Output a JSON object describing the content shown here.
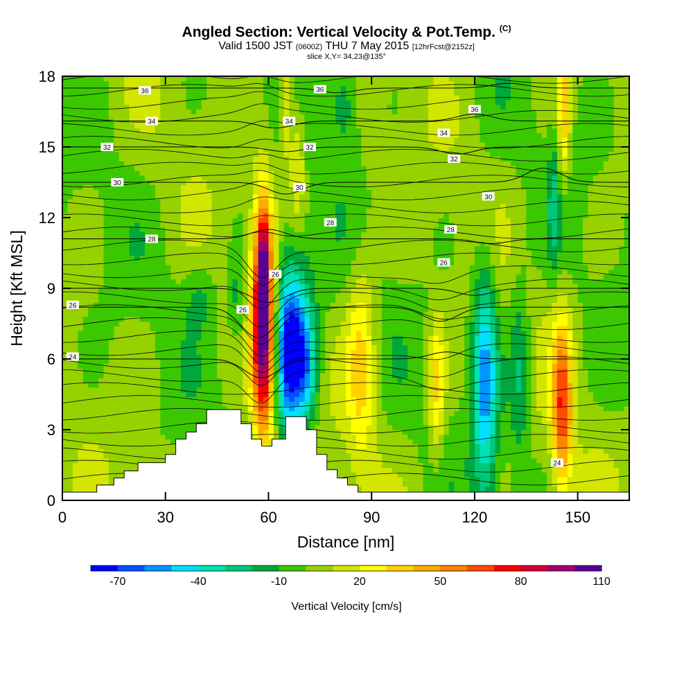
{
  "chart_data": {
    "type": "heatmap",
    "title": "Angled Section: Vertical Velocity & Pot.Temp.",
    "copyright_mark": "(C)",
    "subtitle_prefix": "Valid 1500 JST",
    "subtitle_zulu": "(0600Z)",
    "subtitle_date": "THU 7 May 2015",
    "subtitle_fcst": "[12hrFcst@2152z]",
    "slice_label": "slice X,Y= 34,23@135°",
    "xlabel": "Distance [nm]",
    "ylabel": "Height [Kft MSL]",
    "xlim": [
      0,
      165
    ],
    "ylim": [
      0,
      18
    ],
    "x_ticks": [
      0,
      30,
      60,
      90,
      120,
      150
    ],
    "y_ticks": [
      0,
      3,
      6,
      9,
      12,
      15,
      18
    ],
    "colorbar": {
      "label": "Vertical Velocity [cm/s]",
      "tick_labels": [
        "-70",
        "-40",
        "-10",
        "20",
        "50",
        "80",
        "110"
      ],
      "tick_values": [
        -70,
        -40,
        -10,
        20,
        50,
        80,
        110
      ],
      "colors": [
        "#0000ff",
        "#0050ff",
        "#0096ff",
        "#00e1ff",
        "#00e1b4",
        "#00c878",
        "#00a83c",
        "#3cc800",
        "#96d200",
        "#d2e600",
        "#ffff00",
        "#ffd200",
        "#ffaa00",
        "#ff8200",
        "#ff4b00",
        "#ff0000",
        "#d20032",
        "#a0006e",
        "#5a0096"
      ],
      "min": -80,
      "step": 10
    },
    "terrain": [
      [
        0,
        0.35
      ],
      [
        10,
        0.35
      ],
      [
        10,
        0.65
      ],
      [
        15,
        0.65
      ],
      [
        15,
        0.95
      ],
      [
        18,
        0.95
      ],
      [
        18,
        1.25
      ],
      [
        22,
        1.25
      ],
      [
        22,
        1.6
      ],
      [
        30,
        1.6
      ],
      [
        30,
        1.95
      ],
      [
        33,
        1.95
      ],
      [
        33,
        2.6
      ],
      [
        36,
        2.6
      ],
      [
        36,
        2.9
      ],
      [
        39,
        2.9
      ],
      [
        39,
        3.25
      ],
      [
        42,
        3.25
      ],
      [
        42,
        3.85
      ],
      [
        52,
        3.85
      ],
      [
        52,
        3.25
      ],
      [
        55,
        3.25
      ],
      [
        55,
        2.6
      ],
      [
        58,
        2.6
      ],
      [
        58,
        2.3
      ],
      [
        61,
        2.3
      ],
      [
        61,
        2.6
      ],
      [
        65,
        2.6
      ],
      [
        65,
        3.55
      ],
      [
        71,
        3.55
      ],
      [
        71,
        3.0
      ],
      [
        74,
        3.0
      ],
      [
        74,
        1.95
      ],
      [
        77,
        1.95
      ],
      [
        77,
        1.3
      ],
      [
        80,
        1.3
      ],
      [
        80,
        0.95
      ],
      [
        83,
        0.95
      ],
      [
        83,
        0.65
      ],
      [
        86,
        0.65
      ],
      [
        86,
        0.35
      ],
      [
        165,
        0.35
      ],
      [
        165,
        0
      ],
      [
        0,
        0
      ]
    ],
    "velocity_features": [
      {
        "x": 58.5,
        "y": 7.5,
        "sx": 2.3,
        "sy": 3.3,
        "value": 115
      },
      {
        "x": 58.5,
        "y": 10.5,
        "sx": 1.2,
        "sy": 1.6,
        "value": 35
      },
      {
        "x": 66.5,
        "y": 6.0,
        "sx": 3.2,
        "sy": 2.3,
        "value": -72
      },
      {
        "x": 67,
        "y": 8.2,
        "sx": 5,
        "sy": 2.5,
        "value": -25
      },
      {
        "x": 71.5,
        "y": 5.5,
        "sx": 2.2,
        "sy": 1.5,
        "value": -30
      },
      {
        "x": 87,
        "y": 6.0,
        "sx": 3.0,
        "sy": 3.2,
        "value": 30
      },
      {
        "x": 109,
        "y": 4.8,
        "sx": 1.6,
        "sy": 2.0,
        "value": 32
      },
      {
        "x": 123,
        "y": 5.2,
        "sx": 2.6,
        "sy": 3.4,
        "value": -55
      },
      {
        "x": 133,
        "y": 5.5,
        "sx": 2.2,
        "sy": 2.8,
        "value": -25
      },
      {
        "x": 145.5,
        "y": 4.0,
        "sx": 2.0,
        "sy": 2.5,
        "value": 62
      },
      {
        "x": 146,
        "y": 16.5,
        "sx": 1.2,
        "sy": 2.0,
        "value": 35
      },
      {
        "x": 143,
        "y": 12.5,
        "sx": 1.2,
        "sy": 2.0,
        "value": -20
      },
      {
        "x": 65,
        "y": 17.0,
        "sx": 1.3,
        "sy": 1.8,
        "value": 30
      },
      {
        "x": 68.5,
        "y": 14.5,
        "sx": 1.5,
        "sy": 2.0,
        "value": 22
      },
      {
        "x": 82,
        "y": 17.0,
        "sx": 3.0,
        "sy": 1.5,
        "value": -22
      },
      {
        "x": 51,
        "y": 8.5,
        "sx": 2.0,
        "sy": 1.5,
        "value": -18
      },
      {
        "x": 40,
        "y": 8.7,
        "sx": 3.0,
        "sy": 1.0,
        "value": -15
      }
    ],
    "isentropes": [
      {
        "label": "24",
        "base": 6.0,
        "dips": [
          [
            58,
            -0.8
          ],
          [
            112,
            0.3
          ]
        ]
      },
      {
        "label": "26",
        "base": 8.2,
        "dips": [
          [
            57,
            -1.3
          ],
          [
            110,
            -0.6
          ]
        ]
      },
      {
        "label": "26",
        "base": 9.0,
        "dips": [
          [
            60,
            -0.6
          ],
          [
            120,
            -0.3
          ]
        ]
      },
      {
        "label": "28",
        "base": 11.1,
        "dips": [
          [
            60,
            0.4
          ],
          [
            125,
            -0.2
          ]
        ]
      },
      {
        "label": "30",
        "base": 13.5,
        "dips": [
          [
            65,
            -0.5
          ],
          [
            140,
            0.6
          ]
        ]
      },
      {
        "label": "32",
        "base": 15.0,
        "dips": [
          [
            65,
            -0.2
          ],
          [
            115,
            -0.3
          ]
        ]
      },
      {
        "label": "34",
        "base": 16.1,
        "dips": [
          [
            62,
            -0.3
          ],
          [
            120,
            0.3
          ]
        ]
      },
      {
        "label": "36",
        "base": 17.5,
        "dips": [
          [
            80,
            -0.2
          ],
          [
            130,
            0.2
          ]
        ]
      }
    ],
    "contour_labels": [
      {
        "text": "36",
        "x": 24,
        "y": 17.4
      },
      {
        "text": "36",
        "x": 75,
        "y": 17.45
      },
      {
        "text": "36",
        "x": 120,
        "y": 16.6
      },
      {
        "text": "34",
        "x": 26,
        "y": 16.1
      },
      {
        "text": "34",
        "x": 66,
        "y": 16.1
      },
      {
        "text": "34",
        "x": 111,
        "y": 15.6
      },
      {
        "text": "32",
        "x": 13,
        "y": 15.0
      },
      {
        "text": "32",
        "x": 72,
        "y": 15.0
      },
      {
        "text": "32",
        "x": 114,
        "y": 14.5
      },
      {
        "text": "30",
        "x": 16,
        "y": 13.5
      },
      {
        "text": "30",
        "x": 69,
        "y": 13.3
      },
      {
        "text": "30",
        "x": 124,
        "y": 12.9
      },
      {
        "text": "28",
        "x": 26,
        "y": 11.1
      },
      {
        "text": "28",
        "x": 78,
        "y": 11.8
      },
      {
        "text": "28",
        "x": 113,
        "y": 11.5
      },
      {
        "text": "26",
        "x": 62,
        "y": 9.6
      },
      {
        "text": "26",
        "x": 52.5,
        "y": 8.1
      },
      {
        "text": "26",
        "x": 111,
        "y": 10.1
      },
      {
        "text": "26",
        "x": 3,
        "y": 8.3
      },
      {
        "text": "24",
        "x": 3,
        "y": 6.1
      },
      {
        "text": "24",
        "x": 144,
        "y": 1.6
      }
    ]
  }
}
